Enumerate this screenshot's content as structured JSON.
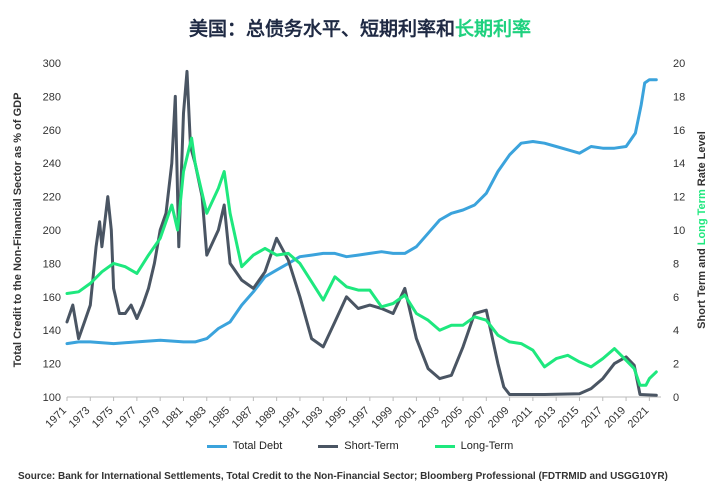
{
  "title": {
    "part1": "美国：总债务水平、短期利率和",
    "part2": "长期利率"
  },
  "source": "Source: Bank for International Settlements, Total Credit to the Non-Financial Sector; Bloomberg Professional (FDTRMID and USGG10YR)",
  "colors": {
    "total_debt": "#3ba3dc",
    "short_term": "#4a5563",
    "long_term": "#1ee87e",
    "axis": "#bbbbbb",
    "title": "#1f2a44"
  },
  "chart_data": {
    "type": "line",
    "title": "美国：总债务水平、短期利率和长期利率",
    "y_left": {
      "label": "Total Credit to the Non-Financial Sector as % of GDP",
      "range": [
        100,
        300
      ],
      "ticks": [
        100,
        120,
        140,
        160,
        180,
        200,
        220,
        240,
        260,
        280,
        300
      ]
    },
    "y_right": {
      "label_parts": [
        "Short Term",
        " and ",
        "Long Term",
        " Rate Level"
      ],
      "range": [
        0,
        20
      ],
      "ticks": [
        0,
        2,
        4,
        6,
        8,
        10,
        12,
        14,
        16,
        18,
        20
      ]
    },
    "x": {
      "range": [
        1971,
        2022
      ],
      "ticks": [
        1971,
        1973,
        1975,
        1977,
        1979,
        1981,
        1983,
        1985,
        1987,
        1989,
        1991,
        1993,
        1995,
        1997,
        1999,
        2001,
        2003,
        2005,
        2007,
        2009,
        2011,
        2013,
        2015,
        2017,
        2019,
        2021
      ]
    },
    "grid": false,
    "legend_position": "bottom",
    "series": [
      {
        "name": "Total Debt",
        "axis": "left",
        "color": "#3ba3dc",
        "points": [
          [
            1971,
            132
          ],
          [
            1972,
            133
          ],
          [
            1973,
            133
          ],
          [
            1975,
            132
          ],
          [
            1977,
            133
          ],
          [
            1979,
            134
          ],
          [
            1981,
            133
          ],
          [
            1982,
            133
          ],
          [
            1983,
            135
          ],
          [
            1984,
            141
          ],
          [
            1985,
            145
          ],
          [
            1986,
            155
          ],
          [
            1987,
            163
          ],
          [
            1988,
            172
          ],
          [
            1989,
            176
          ],
          [
            1990,
            180
          ],
          [
            1991,
            184
          ],
          [
            1992,
            185
          ],
          [
            1993,
            186
          ],
          [
            1994,
            186
          ],
          [
            1995,
            184
          ],
          [
            1996,
            185
          ],
          [
            1997,
            186
          ],
          [
            1998,
            187
          ],
          [
            1999,
            186
          ],
          [
            2000,
            186
          ],
          [
            2001,
            190
          ],
          [
            2002,
            198
          ],
          [
            2003,
            206
          ],
          [
            2004,
            210
          ],
          [
            2005,
            212
          ],
          [
            2006,
            215
          ],
          [
            2007,
            222
          ],
          [
            2008,
            235
          ],
          [
            2009,
            245
          ],
          [
            2010,
            252
          ],
          [
            2011,
            253
          ],
          [
            2012,
            252
          ],
          [
            2013,
            250
          ],
          [
            2014,
            248
          ],
          [
            2015,
            246
          ],
          [
            2016,
            250
          ],
          [
            2017,
            249
          ],
          [
            2018,
            249
          ],
          [
            2019,
            250
          ],
          [
            2019.8,
            258
          ],
          [
            2020.3,
            275
          ],
          [
            2020.6,
            288
          ],
          [
            2021,
            290
          ],
          [
            2021.6,
            290
          ]
        ]
      },
      {
        "name": "Short-Term",
        "axis": "right",
        "color": "#4a5563",
        "points": [
          [
            1971,
            4.5
          ],
          [
            1971.5,
            5.5
          ],
          [
            1972,
            3.5
          ],
          [
            1972.5,
            4.5
          ],
          [
            1973,
            5.5
          ],
          [
            1973.5,
            9
          ],
          [
            1973.8,
            10.5
          ],
          [
            1974,
            9
          ],
          [
            1974.5,
            12
          ],
          [
            1974.8,
            10
          ],
          [
            1975,
            6.5
          ],
          [
            1975.5,
            5
          ],
          [
            1976,
            5
          ],
          [
            1976.5,
            5.5
          ],
          [
            1977,
            4.7
          ],
          [
            1977.5,
            5.5
          ],
          [
            1978,
            6.5
          ],
          [
            1978.5,
            8
          ],
          [
            1979,
            10
          ],
          [
            1979.5,
            11
          ],
          [
            1980,
            14
          ],
          [
            1980.3,
            18
          ],
          [
            1980.6,
            9
          ],
          [
            1981,
            17
          ],
          [
            1981.3,
            19.5
          ],
          [
            1981.6,
            15
          ],
          [
            1982,
            14
          ],
          [
            1982.6,
            12
          ],
          [
            1983,
            8.5
          ],
          [
            1984,
            10
          ],
          [
            1984.5,
            11.5
          ],
          [
            1985,
            8
          ],
          [
            1986,
            7
          ],
          [
            1987,
            6.5
          ],
          [
            1988,
            7.5
          ],
          [
            1989,
            9.5
          ],
          [
            1990,
            8.2
          ],
          [
            1991,
            6
          ],
          [
            1992,
            3.5
          ],
          [
            1993,
            3
          ],
          [
            1994,
            4.5
          ],
          [
            1995,
            6
          ],
          [
            1996,
            5.3
          ],
          [
            1997,
            5.5
          ],
          [
            1998,
            5.3
          ],
          [
            1999,
            5
          ],
          [
            2000,
            6.5
          ],
          [
            2001,
            3.5
          ],
          [
            2002,
            1.7
          ],
          [
            2003,
            1.1
          ],
          [
            2004,
            1.3
          ],
          [
            2005,
            3
          ],
          [
            2006,
            5
          ],
          [
            2007,
            5.2
          ],
          [
            2008,
            2
          ],
          [
            2008.5,
            0.6
          ],
          [
            2009,
            0.15
          ],
          [
            2012,
            0.15
          ],
          [
            2015,
            0.2
          ],
          [
            2016,
            0.5
          ],
          [
            2017,
            1.1
          ],
          [
            2018,
            2
          ],
          [
            2019,
            2.4
          ],
          [
            2019.7,
            1.9
          ],
          [
            2020.2,
            0.15
          ],
          [
            2021.6,
            0.1
          ]
        ]
      },
      {
        "name": "Long-Term",
        "axis": "right",
        "color": "#1ee87e",
        "points": [
          [
            1971,
            6.2
          ],
          [
            1972,
            6.3
          ],
          [
            1973,
            6.8
          ],
          [
            1974,
            7.5
          ],
          [
            1975,
            8
          ],
          [
            1976,
            7.8
          ],
          [
            1977,
            7.4
          ],
          [
            1978,
            8.5
          ],
          [
            1979,
            9.5
          ],
          [
            1980,
            11.5
          ],
          [
            1980.5,
            10
          ],
          [
            1981,
            13.5
          ],
          [
            1981.7,
            15.5
          ],
          [
            1982,
            14
          ],
          [
            1983,
            11
          ],
          [
            1984,
            12.5
          ],
          [
            1984.5,
            13.5
          ],
          [
            1985,
            11
          ],
          [
            1986,
            7.8
          ],
          [
            1987,
            8.5
          ],
          [
            1988,
            8.9
          ],
          [
            1989,
            8.5
          ],
          [
            1990,
            8.6
          ],
          [
            1991,
            8
          ],
          [
            1992,
            6.9
          ],
          [
            1993,
            5.8
          ],
          [
            1994,
            7.2
          ],
          [
            1995,
            6.6
          ],
          [
            1996,
            6.4
          ],
          [
            1997,
            6.4
          ],
          [
            1998,
            5.4
          ],
          [
            1999,
            5.6
          ],
          [
            2000,
            6.1
          ],
          [
            2001,
            5
          ],
          [
            2002,
            4.6
          ],
          [
            2003,
            4
          ],
          [
            2004,
            4.3
          ],
          [
            2005,
            4.3
          ],
          [
            2006,
            4.8
          ],
          [
            2007,
            4.6
          ],
          [
            2008,
            3.7
          ],
          [
            2009,
            3.3
          ],
          [
            2010,
            3.2
          ],
          [
            2011,
            2.8
          ],
          [
            2012,
            1.8
          ],
          [
            2013,
            2.3
          ],
          [
            2014,
            2.5
          ],
          [
            2015,
            2.1
          ],
          [
            2016,
            1.8
          ],
          [
            2017,
            2.3
          ],
          [
            2018,
            2.9
          ],
          [
            2019,
            2.2
          ],
          [
            2019.7,
            1.7
          ],
          [
            2020.2,
            0.7
          ],
          [
            2020.7,
            0.7
          ],
          [
            2021,
            1.1
          ],
          [
            2021.6,
            1.5
          ]
        ]
      }
    ]
  }
}
